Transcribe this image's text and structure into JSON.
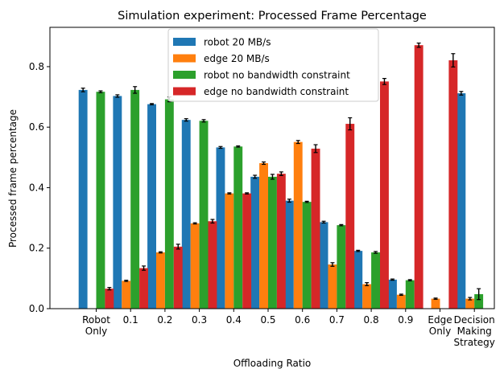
{
  "chart_data": {
    "type": "bar",
    "title": "Simulation experiment: Processed Frame Percentage",
    "xlabel": "Offloading Ratio",
    "ylabel": "Processed frame percentage",
    "ylim": [
      0,
      0.93
    ],
    "yticks": [
      0.0,
      0.2,
      0.4,
      0.6,
      0.8
    ],
    "yticklabels": [
      "0.0",
      "0.2",
      "0.4",
      "0.6",
      "0.8"
    ],
    "grid": false,
    "legend_position": "upper-center",
    "categories": [
      [
        "Robot",
        "Only"
      ],
      [
        "0.1"
      ],
      [
        "0.2"
      ],
      [
        "0.3"
      ],
      [
        "0.4"
      ],
      [
        "0.5"
      ],
      [
        "0.6"
      ],
      [
        "0.7"
      ],
      [
        "0.8"
      ],
      [
        "0.9"
      ],
      [
        "Edge",
        "Only"
      ],
      [
        "Decision",
        "Making",
        "Strategy"
      ]
    ],
    "series": [
      {
        "name": "robot 20 MB/s",
        "color": "#1f77b4",
        "values": [
          0.723,
          0.703,
          0.676,
          0.624,
          0.533,
          0.436,
          0.357,
          0.286,
          0.191,
          0.096,
          0.0,
          0.712
        ],
        "errors": [
          0.006,
          0.004,
          0.002,
          0.004,
          0.003,
          0.005,
          0.005,
          0.003,
          0.002,
          0.002,
          0.0,
          0.006
        ]
      },
      {
        "name": "edge 20 MB/s",
        "color": "#ff7f0e",
        "values": [
          0.0,
          0.092,
          0.186,
          0.282,
          0.381,
          0.481,
          0.551,
          0.146,
          0.081,
          0.046,
          0.033,
          0.033
        ],
        "errors": [
          0.0,
          0.002,
          0.002,
          0.002,
          0.002,
          0.004,
          0.005,
          0.006,
          0.005,
          0.002,
          0.002,
          0.004
        ]
      },
      {
        "name": "robot no bandwidth constraint",
        "color": "#2ca02c",
        "values": [
          0.717,
          0.723,
          0.692,
          0.621,
          0.536,
          0.436,
          0.353,
          0.276,
          0.186,
          0.094,
          0.0,
          0.048
        ],
        "errors": [
          0.003,
          0.011,
          0.008,
          0.004,
          0.002,
          0.008,
          0.002,
          0.002,
          0.003,
          0.002,
          0.0,
          0.018
        ]
      },
      {
        "name": "edge no bandwidth constraint",
        "color": "#d62728",
        "values": [
          0.066,
          0.134,
          0.205,
          0.289,
          0.381,
          0.446,
          0.529,
          0.611,
          0.751,
          0.871,
          0.821,
          0.0
        ],
        "errors": [
          0.004,
          0.007,
          0.008,
          0.006,
          0.002,
          0.006,
          0.013,
          0.02,
          0.01,
          0.007,
          0.022,
          0.0
        ]
      }
    ]
  }
}
